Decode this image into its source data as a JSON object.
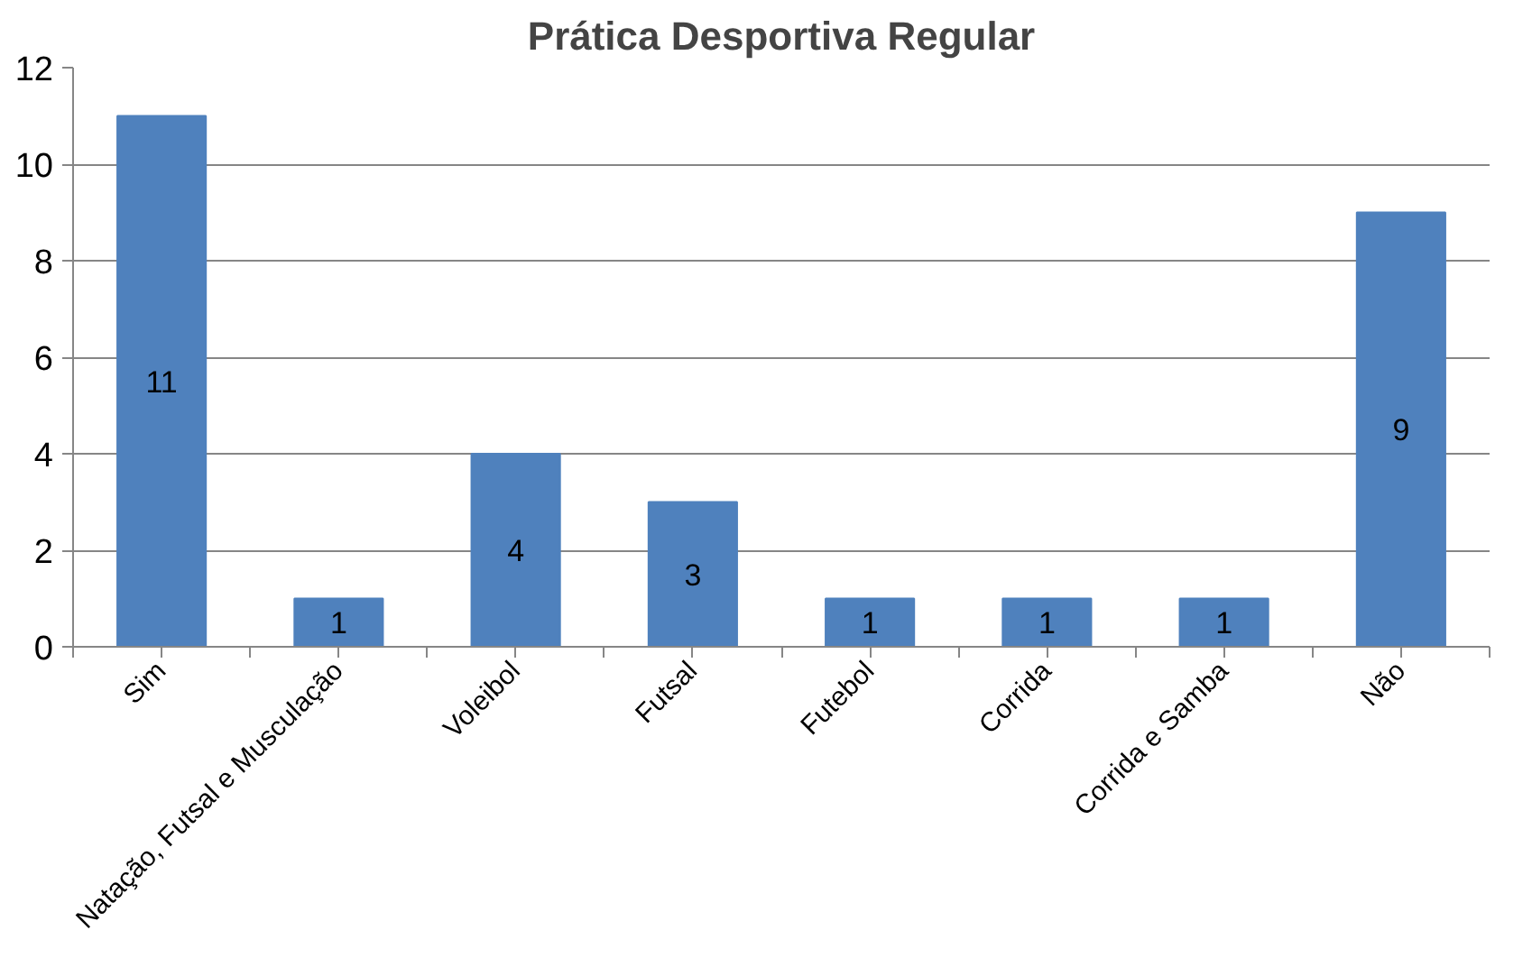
{
  "chart_data": {
    "type": "bar",
    "title": "Prática Desportiva Regular",
    "categories": [
      "Sim",
      "Natação, Futsal e Musculação",
      "Voleibol",
      "Futsal",
      "Futebol",
      "Corrida",
      "Corrida e Samba",
      "Não"
    ],
    "values": [
      11,
      1,
      4,
      3,
      1,
      1,
      1,
      9
    ],
    "color": "#4f81bd",
    "ylim": [
      0,
      12
    ],
    "yticks": [
      0,
      2,
      4,
      6,
      8,
      10,
      12
    ],
    "grid": "y",
    "data_labels": true
  }
}
